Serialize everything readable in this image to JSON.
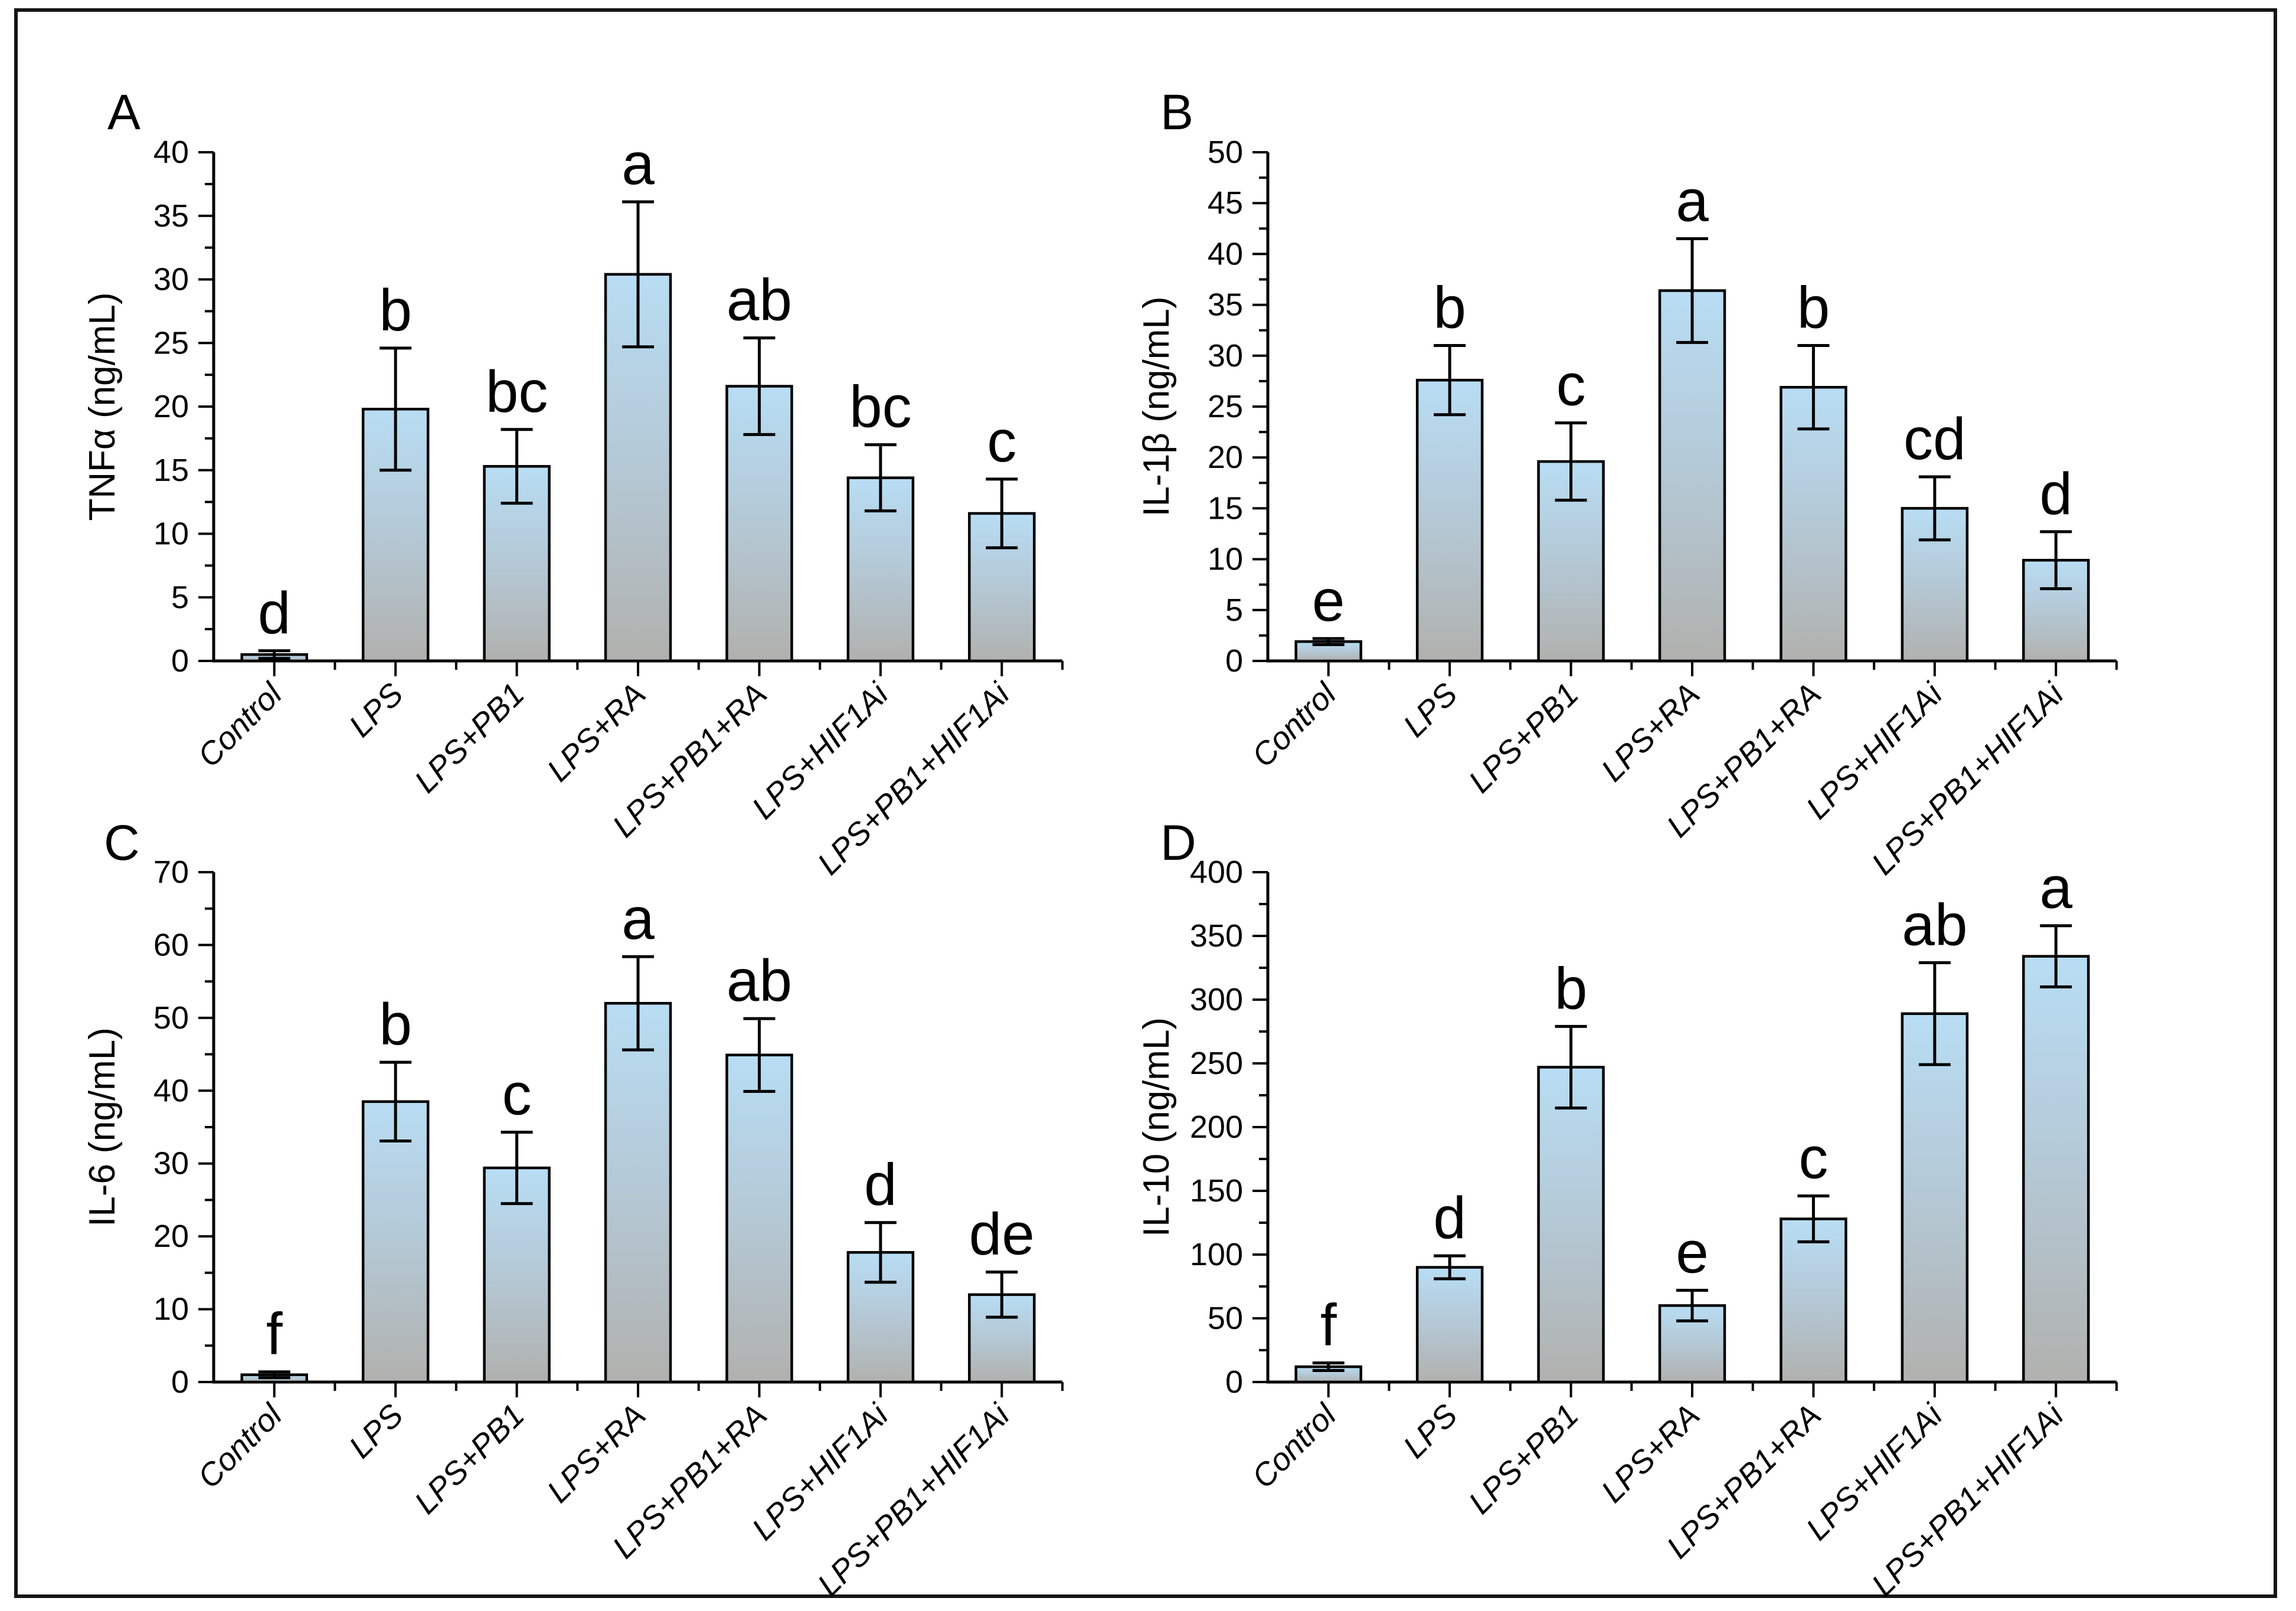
{
  "figure": {
    "background": "#ffffff",
    "border_color": "#141414",
    "axis_color": "#000000",
    "text_color": "#000000",
    "bar_outline_color": "#000000",
    "bar_fill_top": "#b8ddf4",
    "bar_fill_mid": "#b4c8d5",
    "bar_fill_bottom": "#b1b1ae",
    "panel_letters": [
      "A",
      "B",
      "C",
      "D"
    ]
  },
  "chart_data": [
    {
      "type": "bar",
      "panel_label": "A",
      "title": "",
      "xlabel": "",
      "ylabel": "TNFα (ng/mL)",
      "ylim": [
        0,
        40
      ],
      "ystep": 5,
      "grid": false,
      "legend_position": "none",
      "categories": [
        "Control",
        "LPS",
        "LPS+PB1",
        "LPS+RA",
        "LPS+PB1+RA",
        "LPS+HIF1Ai",
        "LPS+PB1+HIF1Ai"
      ],
      "values": [
        0.5,
        19.8,
        15.3,
        30.4,
        21.6,
        14.4,
        11.6
      ],
      "errors": [
        0.3,
        4.8,
        2.9,
        5.7,
        3.8,
        2.6,
        2.7
      ],
      "sig_letters": [
        "d",
        "b",
        "bc",
        "a",
        "ab",
        "bc",
        "c"
      ]
    },
    {
      "type": "bar",
      "panel_label": "B",
      "title": "",
      "xlabel": "",
      "ylabel": "IL-1β (ng/mL)",
      "ylim": [
        0,
        50
      ],
      "ystep": 5,
      "grid": false,
      "legend_position": "none",
      "categories": [
        "Control",
        "LPS",
        "LPS+PB1",
        "LPS+RA",
        "LPS+PB1+RA",
        "LPS+HIF1Ai",
        "LPS+PB1+HIF1Ai"
      ],
      "values": [
        1.9,
        27.6,
        19.6,
        36.4,
        26.9,
        15.0,
        9.9
      ],
      "errors": [
        0.3,
        3.4,
        3.8,
        5.1,
        4.1,
        3.1,
        2.8
      ],
      "sig_letters": [
        "e",
        "b",
        "c",
        "a",
        "b",
        "cd",
        "d"
      ]
    },
    {
      "type": "bar",
      "panel_label": "C",
      "title": "",
      "xlabel": "",
      "ylabel": "IL-6 (ng/mL)",
      "ylim": [
        0,
        70
      ],
      "ystep": 10,
      "grid": false,
      "legend_position": "none",
      "categories": [
        "Control",
        "LPS",
        "LPS+PB1",
        "LPS+RA",
        "LPS+PB1+RA",
        "LPS+HIF1Ai",
        "LPS+PB1+HIF1Ai"
      ],
      "values": [
        1.0,
        38.5,
        29.4,
        52.0,
        44.9,
        17.8,
        12.0
      ],
      "errors": [
        0.4,
        5.4,
        4.9,
        6.4,
        5.0,
        4.1,
        3.1
      ],
      "sig_letters": [
        "f",
        "b",
        "c",
        "a",
        "ab",
        "d",
        "de"
      ]
    },
    {
      "type": "bar",
      "panel_label": "D",
      "title": "",
      "xlabel": "",
      "ylabel": "IL-10 (ng/mL)",
      "ylim": [
        0,
        400
      ],
      "ystep": 50,
      "grid": false,
      "legend_position": "none",
      "categories": [
        "Control",
        "LPS",
        "LPS+PB1",
        "LPS+RA",
        "LPS+PB1+RA",
        "LPS+HIF1Ai",
        "LPS+PB1+HIF1Ai"
      ],
      "values": [
        12,
        90,
        247,
        60,
        128,
        289,
        334
      ],
      "errors": [
        3,
        9,
        32,
        12,
        18,
        40,
        24
      ],
      "sig_letters": [
        "f",
        "d",
        "b",
        "e",
        "c",
        "ab",
        "a"
      ]
    }
  ]
}
